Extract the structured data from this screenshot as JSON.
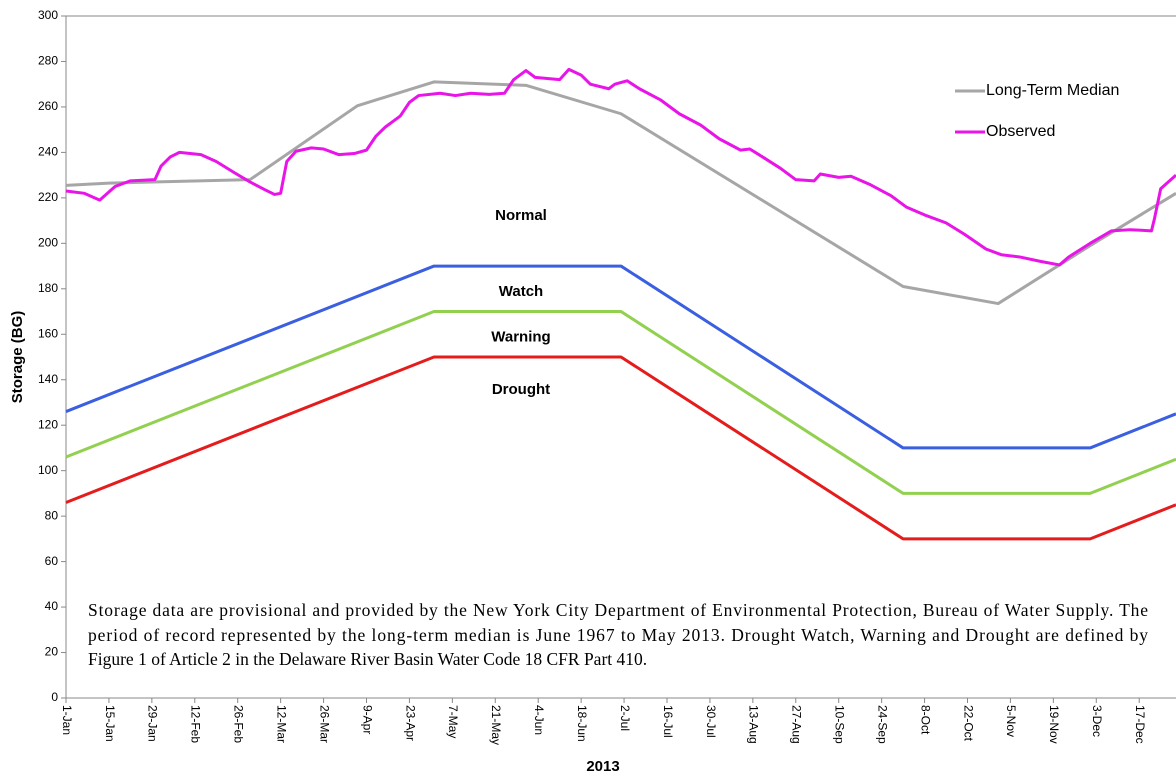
{
  "chart_data": {
    "type": "line",
    "y_label": "Storage (BG)",
    "x_label": "2013",
    "annotations": [
      "Normal"
    ],
    "note": [
      "Storage data are provisional and provided by the New York City Department of Environmental Protection, Bureau of Water Supply. The",
      "period of record represented by the long-term median is June 1967 to May 2013. Drought Watch, Warning and Drought are defined by",
      "Figure 1 of Article 2 in the Delaware River Basin Water Code 18 CFR Part 410."
    ],
    "xlim": [
      0,
      362
    ],
    "xticks": [
      {
        "value": 0,
        "label": "1-Jan"
      },
      {
        "value": 14,
        "label": "15-Jan"
      },
      {
        "value": 28,
        "label": "29-Jan"
      },
      {
        "value": 42,
        "label": "12-Feb"
      },
      {
        "value": 56,
        "label": "26-Feb"
      },
      {
        "value": 70,
        "label": "12-Mar"
      },
      {
        "value": 84,
        "label": "26-Mar"
      },
      {
        "value": 98,
        "label": "9-Apr"
      },
      {
        "value": 112,
        "label": "23-Apr"
      },
      {
        "value": 126,
        "label": "7-May"
      },
      {
        "value": 140,
        "label": "21-May"
      },
      {
        "value": 154,
        "label": "4-Jun"
      },
      {
        "value": 168,
        "label": "18-Jun"
      },
      {
        "value": 182,
        "label": "2-Jul"
      },
      {
        "value": 196,
        "label": "16-Jul"
      },
      {
        "value": 210,
        "label": "30-Jul"
      },
      {
        "value": 224,
        "label": "13-Aug"
      },
      {
        "value": 238,
        "label": "27-Aug"
      },
      {
        "value": 252,
        "label": "10-Sep"
      },
      {
        "value": 266,
        "label": "24-Sep"
      },
      {
        "value": 280,
        "label": "8-Oct"
      },
      {
        "value": 294,
        "label": "22-Oct"
      },
      {
        "value": 308,
        "label": "5-Nov"
      },
      {
        "value": 322,
        "label": "19-Nov"
      },
      {
        "value": 336,
        "label": "3-Dec"
      },
      {
        "value": 350,
        "label": "17-Dec"
      }
    ],
    "ylim": [
      0,
      300
    ],
    "yticks": [
      0,
      20,
      40,
      60,
      80,
      100,
      120,
      140,
      160,
      180,
      200,
      220,
      240,
      260,
      280,
      300
    ],
    "grid": false,
    "legend": "upper right",
    "series": [
      {
        "name": "Long-Term Median",
        "color": "#a6a6a6",
        "legend": true,
        "x": [
          0,
          14,
          60,
          95,
          120,
          150,
          181,
          273,
          304,
          334,
          362
        ],
        "values": [
          225.5,
          226.5,
          228,
          260.5,
          271,
          269.5,
          257,
          181,
          173.5,
          199,
          222
        ]
      },
      {
        "name": "Observed",
        "color": "#e814e8",
        "legend": true,
        "x": [
          0,
          6,
          11,
          16,
          21,
          29,
          31,
          34,
          37,
          44,
          49,
          55,
          60,
          65,
          68,
          70,
          72,
          75,
          80,
          84,
          89,
          94,
          98,
          101,
          104,
          109,
          112,
          115,
          122,
          127,
          132,
          138,
          143,
          146,
          150,
          153,
          157,
          161,
          164,
          168,
          171,
          177,
          179,
          183,
          187,
          194,
          200,
          207,
          213,
          220,
          223,
          226,
          233,
          238,
          244,
          246,
          252,
          256,
          262,
          269,
          274,
          280,
          287,
          293,
          300,
          305,
          311,
          318,
          324,
          327,
          334,
          341,
          347,
          354,
          355,
          357,
          362
        ],
        "values": [
          223,
          222,
          219,
          225,
          227.5,
          228,
          234,
          238,
          240,
          239,
          236,
          231,
          227,
          223.5,
          221.5,
          222,
          236,
          240.5,
          242,
          241.5,
          239,
          239.5,
          241,
          247,
          251,
          256,
          262,
          265,
          266,
          265,
          266,
          265.5,
          266,
          272,
          276,
          273,
          272.5,
          272,
          276.5,
          274,
          270,
          268,
          270,
          271.5,
          268,
          263,
          257,
          252,
          246,
          241,
          241.5,
          239,
          233,
          228,
          227.5,
          230.5,
          229,
          229.5,
          226,
          221,
          216,
          212.5,
          209,
          204,
          197.5,
          195,
          194,
          192,
          190.5,
          194,
          200,
          205.5,
          206,
          205.5,
          211,
          224,
          230
        ]
      },
      {
        "name": "Watch",
        "color": "#3a5fe0",
        "legend": false,
        "x": [
          0,
          120,
          181,
          273,
          334,
          362
        ],
        "values": [
          126,
          190,
          190,
          110,
          110,
          125
        ]
      },
      {
        "name": "Warning",
        "color": "#92d050",
        "legend": false,
        "x": [
          0,
          120,
          181,
          273,
          334,
          362
        ],
        "values": [
          106,
          170,
          170,
          90,
          90,
          105
        ]
      },
      {
        "name": "Drought",
        "color": "#e51c1c",
        "legend": false,
        "x": [
          0,
          120,
          181,
          273,
          334,
          362
        ],
        "values": [
          86,
          150,
          150,
          70,
          70,
          85
        ]
      }
    ]
  }
}
